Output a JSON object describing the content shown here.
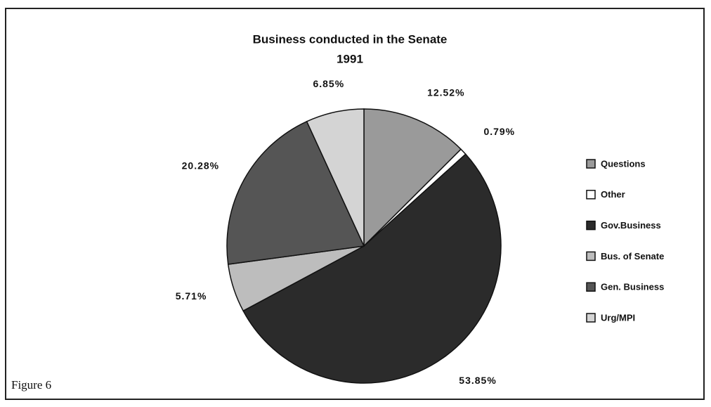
{
  "chart_data": {
    "type": "pie",
    "title": "Business conducted in the Senate",
    "subtitle": "1991",
    "caption": "Figure 6",
    "categories": [
      "Questions",
      "Other",
      "Gov.Business",
      "Bus. of Senate",
      "Gen. Business",
      "Urg/MPI"
    ],
    "values": [
      12.52,
      0.79,
      53.85,
      5.71,
      20.28,
      6.85
    ],
    "value_labels": [
      "12.52%",
      "0.79%",
      "53.85%",
      "5.71%",
      "20.28%",
      "6.85%"
    ],
    "colors": [
      "#9a9a9a",
      "#ffffff",
      "#2b2b2b",
      "#bdbdbd",
      "#555555",
      "#d4d4d4"
    ],
    "legend": "right"
  }
}
